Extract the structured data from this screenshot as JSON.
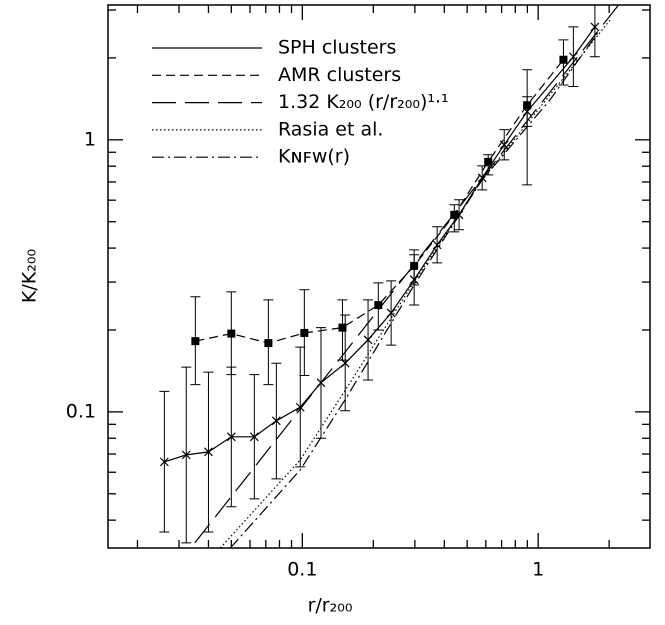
{
  "chart_data": {
    "type": "line",
    "xlabel": "r/r₂₀₀",
    "ylabel": "K/K₂₀₀",
    "xscale": "log",
    "yscale": "log",
    "xlim": [
      0.015,
      2.98
    ],
    "ylim": [
      0.0316,
      3.13
    ],
    "xticks": [
      0.1,
      1
    ],
    "yticks": [
      0.1,
      1
    ],
    "xminorticks": [
      0.02,
      0.03,
      0.04,
      0.05,
      0.06,
      0.07,
      0.08,
      0.09,
      0.2,
      0.3,
      0.4,
      0.5,
      0.6,
      0.7,
      0.8,
      0.9,
      2
    ],
    "yminorticks": [
      0.04,
      0.05,
      0.06,
      0.07,
      0.08,
      0.09,
      0.2,
      0.3,
      0.4,
      0.5,
      0.6,
      0.7,
      0.8,
      0.9,
      2,
      3
    ],
    "legend": "upper left",
    "series": [
      {
        "name": "SPH clusters",
        "color": "#000000",
        "style": "solid",
        "marker": "x",
        "x": [
          0.026,
          0.0322,
          0.04,
          0.05,
          0.0626,
          0.0776,
          0.098,
          0.12,
          0.152,
          0.19,
          0.238,
          0.298,
          0.373,
          0.462,
          0.579,
          0.718,
          0.898,
          1.41,
          1.74
        ],
        "values": [
          0.0655,
          0.0695,
          0.0713,
          0.081,
          0.081,
          0.0927,
          0.104,
          0.128,
          0.151,
          0.184,
          0.231,
          0.306,
          0.411,
          0.53,
          0.725,
          0.959,
          1.27,
          2.02,
          2.6
        ],
        "lower": [
          0.0362,
          0.033,
          0.0362,
          0.0448,
          0.0479,
          0.0567,
          0.0628,
          0.08,
          0.101,
          0.131,
          0.176,
          0.247,
          0.353,
          0.467,
          0.655,
          0.844,
          1.12,
          1.57,
          2.02
        ],
        "upper": [
          0.119,
          0.146,
          0.14,
          0.146,
          0.137,
          0.151,
          0.173,
          0.204,
          0.227,
          0.258,
          0.303,
          0.378,
          0.479,
          0.602,
          0.802,
          1.09,
          1.44,
          2.6,
          3.36
        ]
      },
      {
        "name": "AMR clusters",
        "color": "#000000",
        "style": "dashed",
        "marker": "square",
        "x": [
          0.0352,
          0.05,
          0.0718,
          0.102,
          0.148,
          0.21,
          0.298,
          0.441,
          0.614,
          0.898,
          1.28
        ],
        "values": [
          0.182,
          0.194,
          0.179,
          0.195,
          0.204,
          0.247,
          0.344,
          0.53,
          0.83,
          1.34,
          1.97
        ],
        "lower": [
          0.126,
          0.137,
          0.126,
          0.136,
          0.155,
          0.2,
          0.293,
          0.459,
          0.743,
          0.683,
          1.59
        ],
        "upper": [
          0.265,
          0.276,
          0.258,
          0.281,
          0.258,
          0.298,
          0.394,
          0.577,
          0.881,
          1.81,
          2.33
        ]
      },
      {
        "name": "1.32 K₂₀₀ (r/r₂₀₀)¹·¹",
        "color": "#000000",
        "style": "longdash",
        "marker": "none",
        "x": [
          0.035,
          2.9
        ],
        "values": [
          0.033,
          4.26
        ]
      },
      {
        "name": "Rasia et al.",
        "color": "#000000",
        "style": "dotted",
        "marker": "none",
        "x": [
          0.0449,
          0.098,
          0.152,
          0.298,
          0.579,
          1.12,
          2.02
        ],
        "values": [
          0.0316,
          0.0666,
          0.12,
          0.301,
          0.713,
          1.46,
          2.76
        ]
      },
      {
        "name": "Kɴꜰᴡ(r)",
        "color": "#000000",
        "style": "dashdot",
        "marker": "none",
        "x": [
          0.0495,
          0.098,
          0.152,
          0.298,
          0.579,
          1.12,
          1.83
        ],
        "values": [
          0.0316,
          0.0612,
          0.111,
          0.293,
          0.713,
          1.4,
          2.54
        ]
      }
    ]
  }
}
